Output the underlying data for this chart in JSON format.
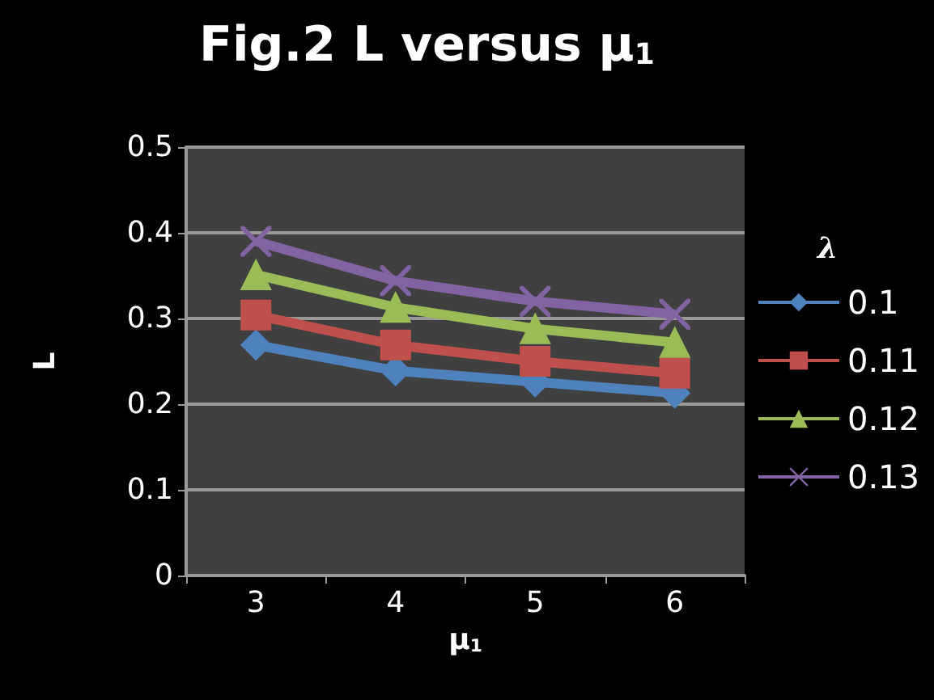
{
  "chart_data": {
    "type": "line",
    "title": "Fig.2 L versus μ$_{1}$",
    "xlabel": "μ$_{1}$",
    "ylabel": "L",
    "legend_title": "λ",
    "categories": [
      "3",
      "4",
      "5",
      "6"
    ],
    "series": [
      {
        "name": "0.1",
        "color": "#4f81bd",
        "marker": "diamond",
        "values": [
          0.269,
          0.239,
          0.226,
          0.213
        ]
      },
      {
        "name": "0.11",
        "color": "#c0504d",
        "marker": "square",
        "values": [
          0.304,
          0.269,
          0.25,
          0.236
        ]
      },
      {
        "name": "0.12",
        "color": "#9bbb59",
        "marker": "triangle",
        "values": [
          0.351,
          0.313,
          0.288,
          0.272
        ]
      },
      {
        "name": "0.13",
        "color": "#8064a2",
        "marker": "cross",
        "values": [
          0.39,
          0.344,
          0.32,
          0.305
        ]
      }
    ],
    "ylim": [
      0,
      0.5
    ],
    "yticks": [
      0,
      0.1,
      0.2,
      0.3,
      0.4,
      0.5
    ],
    "grid": "y",
    "legend": "right"
  }
}
